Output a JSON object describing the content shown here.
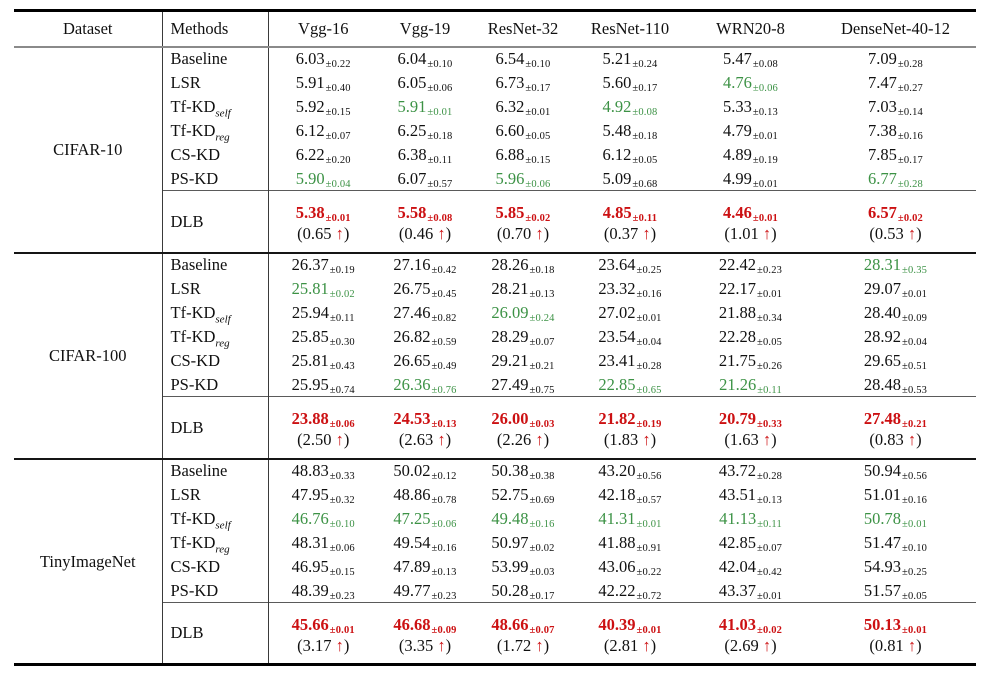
{
  "table": {
    "colors": {
      "green": "#3c9245",
      "red": "#cc1012",
      "text": "#101010"
    },
    "up_arrow": "↑",
    "gain_format": {
      "open": "(",
      "close": ")"
    },
    "header": {
      "dataset": "Dataset",
      "methods": "Methods",
      "architectures": [
        "Vgg-16",
        "Vgg-19",
        "ResNet-32",
        "ResNet-110",
        "WRN20-8",
        "DenseNet-40-12"
      ]
    },
    "sections": [
      {
        "dataset": "CIFAR-10",
        "rows": [
          {
            "method": {
              "base": "Baseline",
              "sub": ""
            },
            "cells": [
              {
                "v": "6.03",
                "pm": "±0.22",
                "hl": false
              },
              {
                "v": "6.04",
                "pm": "±0.10",
                "hl": false
              },
              {
                "v": "6.54",
                "pm": "±0.10",
                "hl": false
              },
              {
                "v": "5.21",
                "pm": "±0.24",
                "hl": false
              },
              {
                "v": "5.47",
                "pm": "±0.08",
                "hl": false
              },
              {
                "v": "7.09",
                "pm": "±0.28",
                "hl": false
              }
            ]
          },
          {
            "method": {
              "base": "LSR",
              "sub": ""
            },
            "cells": [
              {
                "v": "5.91",
                "pm": "±0.40",
                "hl": false
              },
              {
                "v": "6.05",
                "pm": "±0.06",
                "hl": false
              },
              {
                "v": "6.73",
                "pm": "±0.17",
                "hl": false
              },
              {
                "v": "5.60",
                "pm": "±0.17",
                "hl": false
              },
              {
                "v": "4.76",
                "pm": "±0.06",
                "hl": true
              },
              {
                "v": "7.47",
                "pm": "±0.27",
                "hl": false
              }
            ]
          },
          {
            "method": {
              "base": "Tf-KD",
              "sub": "self"
            },
            "cells": [
              {
                "v": "5.92",
                "pm": "±0.15",
                "hl": false
              },
              {
                "v": "5.91",
                "pm": "±0.01",
                "hl": true
              },
              {
                "v": "6.32",
                "pm": "±0.01",
                "hl": false
              },
              {
                "v": "4.92",
                "pm": "±0.08",
                "hl": true
              },
              {
                "v": "5.33",
                "pm": "±0.13",
                "hl": false
              },
              {
                "v": "7.03",
                "pm": "±0.14",
                "hl": false
              }
            ]
          },
          {
            "method": {
              "base": "Tf-KD",
              "sub": "reg"
            },
            "cells": [
              {
                "v": "6.12",
                "pm": "±0.07",
                "hl": false
              },
              {
                "v": "6.25",
                "pm": "±0.18",
                "hl": false
              },
              {
                "v": "6.60",
                "pm": "±0.05",
                "hl": false
              },
              {
                "v": "5.48",
                "pm": "±0.18",
                "hl": false
              },
              {
                "v": "4.79",
                "pm": "±0.01",
                "hl": false
              },
              {
                "v": "7.38",
                "pm": "±0.16",
                "hl": false
              }
            ]
          },
          {
            "method": {
              "base": "CS-KD",
              "sub": ""
            },
            "cells": [
              {
                "v": "6.22",
                "pm": "±0.20",
                "hl": false
              },
              {
                "v": "6.38",
                "pm": "±0.11",
                "hl": false
              },
              {
                "v": "6.88",
                "pm": "±0.15",
                "hl": false
              },
              {
                "v": "6.12",
                "pm": "±0.05",
                "hl": false
              },
              {
                "v": "4.89",
                "pm": "±0.19",
                "hl": false
              },
              {
                "v": "7.85",
                "pm": "±0.17",
                "hl": false
              }
            ]
          },
          {
            "method": {
              "base": "PS-KD",
              "sub": ""
            },
            "cells": [
              {
                "v": "5.90",
                "pm": "±0.04",
                "hl": true
              },
              {
                "v": "6.07",
                "pm": "±0.57",
                "hl": false
              },
              {
                "v": "5.96",
                "pm": "±0.06",
                "hl": true
              },
              {
                "v": "5.09",
                "pm": "±0.68",
                "hl": false
              },
              {
                "v": "4.99",
                "pm": "±0.01",
                "hl": false
              },
              {
                "v": "6.77",
                "pm": "±0.28",
                "hl": true
              }
            ]
          }
        ],
        "dlb": {
          "method": "DLB",
          "cells": [
            {
              "v": "5.38",
              "pm": "±0.01"
            },
            {
              "v": "5.58",
              "pm": "±0.08"
            },
            {
              "v": "5.85",
              "pm": "±0.02"
            },
            {
              "v": "4.85",
              "pm": "±0.11"
            },
            {
              "v": "4.46",
              "pm": "±0.01"
            },
            {
              "v": "6.57",
              "pm": "±0.02"
            }
          ],
          "gains": [
            "0.65",
            "0.46",
            "0.70",
            "0.37",
            "1.01",
            "0.53"
          ]
        }
      },
      {
        "dataset": "CIFAR-100",
        "rows": [
          {
            "method": {
              "base": "Baseline",
              "sub": ""
            },
            "cells": [
              {
                "v": "26.37",
                "pm": "±0.19",
                "hl": false
              },
              {
                "v": "27.16",
                "pm": "±0.42",
                "hl": false
              },
              {
                "v": "28.26",
                "pm": "±0.18",
                "hl": false
              },
              {
                "v": "23.64",
                "pm": "±0.25",
                "hl": false
              },
              {
                "v": "22.42",
                "pm": "±0.23",
                "hl": false
              },
              {
                "v": "28.31",
                "pm": "±0.35",
                "hl": true
              }
            ]
          },
          {
            "method": {
              "base": "LSR",
              "sub": ""
            },
            "cells": [
              {
                "v": "25.81",
                "pm": "±0.02",
                "hl": true
              },
              {
                "v": "26.75",
                "pm": "±0.45",
                "hl": false
              },
              {
                "v": "28.21",
                "pm": "±0.13",
                "hl": false
              },
              {
                "v": "23.32",
                "pm": "±0.16",
                "hl": false
              },
              {
                "v": "22.17",
                "pm": "±0.01",
                "hl": false
              },
              {
                "v": "29.07",
                "pm": "±0.01",
                "hl": false
              }
            ]
          },
          {
            "method": {
              "base": "Tf-KD",
              "sub": "self"
            },
            "cells": [
              {
                "v": "25.94",
                "pm": "±0.11",
                "hl": false
              },
              {
                "v": "27.46",
                "pm": "±0.82",
                "hl": false
              },
              {
                "v": "26.09",
                "pm": "±0.24",
                "hl": true
              },
              {
                "v": "27.02",
                "pm": "±0.01",
                "hl": false
              },
              {
                "v": "21.88",
                "pm": "±0.34",
                "hl": false
              },
              {
                "v": "28.40",
                "pm": "±0.09",
                "hl": false
              }
            ]
          },
          {
            "method": {
              "base": "Tf-KD",
              "sub": "reg"
            },
            "cells": [
              {
                "v": "25.85",
                "pm": "±0.30",
                "hl": false
              },
              {
                "v": "26.82",
                "pm": "±0.59",
                "hl": false
              },
              {
                "v": "28.29",
                "pm": "±0.07",
                "hl": false
              },
              {
                "v": "23.54",
                "pm": "±0.04",
                "hl": false
              },
              {
                "v": "22.28",
                "pm": "±0.05",
                "hl": false
              },
              {
                "v": "28.92",
                "pm": "±0.04",
                "hl": false
              }
            ]
          },
          {
            "method": {
              "base": "CS-KD",
              "sub": ""
            },
            "cells": [
              {
                "v": "25.81",
                "pm": "±0.43",
                "hl": false
              },
              {
                "v": "26.65",
                "pm": "±0.49",
                "hl": false
              },
              {
                "v": "29.21",
                "pm": "±0.21",
                "hl": false
              },
              {
                "v": "23.41",
                "pm": "±0.28",
                "hl": false
              },
              {
                "v": "21.75",
                "pm": "±0.26",
                "hl": false
              },
              {
                "v": "29.65",
                "pm": "±0.51",
                "hl": false
              }
            ]
          },
          {
            "method": {
              "base": "PS-KD",
              "sub": ""
            },
            "cells": [
              {
                "v": "25.95",
                "pm": "±0.74",
                "hl": false
              },
              {
                "v": "26.36",
                "pm": "±0.76",
                "hl": true
              },
              {
                "v": "27.49",
                "pm": "±0.75",
                "hl": false
              },
              {
                "v": "22.85",
                "pm": "±0.65",
                "hl": true
              },
              {
                "v": "21.26",
                "pm": "±0.11",
                "hl": true
              },
              {
                "v": "28.48",
                "pm": "±0.53",
                "hl": false
              }
            ]
          }
        ],
        "dlb": {
          "method": "DLB",
          "cells": [
            {
              "v": "23.88",
              "pm": "±0.06"
            },
            {
              "v": "24.53",
              "pm": "±0.13"
            },
            {
              "v": "26.00",
              "pm": "±0.03"
            },
            {
              "v": "21.82",
              "pm": "±0.19"
            },
            {
              "v": "20.79",
              "pm": "±0.33"
            },
            {
              "v": "27.48",
              "pm": "±0.21"
            }
          ],
          "gains": [
            "2.50",
            "2.63",
            "2.26",
            "1.83",
            "1.63",
            "0.83"
          ]
        }
      },
      {
        "dataset": "TinyImageNet",
        "rows": [
          {
            "method": {
              "base": "Baseline",
              "sub": ""
            },
            "cells": [
              {
                "v": "48.83",
                "pm": "±0.33",
                "hl": false
              },
              {
                "v": "50.02",
                "pm": "±0.12",
                "hl": false
              },
              {
                "v": "50.38",
                "pm": "±0.38",
                "hl": false
              },
              {
                "v": "43.20",
                "pm": "±0.56",
                "hl": false
              },
              {
                "v": "43.72",
                "pm": "±0.28",
                "hl": false
              },
              {
                "v": "50.94",
                "pm": "±0.56",
                "hl": false
              }
            ]
          },
          {
            "method": {
              "base": "LSR",
              "sub": ""
            },
            "cells": [
              {
                "v": "47.95",
                "pm": "±0.32",
                "hl": false
              },
              {
                "v": "48.86",
                "pm": "±0.78",
                "hl": false
              },
              {
                "v": "52.75",
                "pm": "±0.69",
                "hl": false
              },
              {
                "v": "42.18",
                "pm": "±0.57",
                "hl": false
              },
              {
                "v": "43.51",
                "pm": "±0.13",
                "hl": false
              },
              {
                "v": "51.01",
                "pm": "±0.16",
                "hl": false
              }
            ]
          },
          {
            "method": {
              "base": "Tf-KD",
              "sub": "self"
            },
            "cells": [
              {
                "v": "46.76",
                "pm": "±0.10",
                "hl": true
              },
              {
                "v": "47.25",
                "pm": "±0.06",
                "hl": true
              },
              {
                "v": "49.48",
                "pm": "±0.16",
                "hl": true
              },
              {
                "v": "41.31",
                "pm": "±0.01",
                "hl": true
              },
              {
                "v": "41.13",
                "pm": "±0.11",
                "hl": true
              },
              {
                "v": "50.78",
                "pm": "±0.01",
                "hl": true
              }
            ]
          },
          {
            "method": {
              "base": "Tf-KD",
              "sub": "reg"
            },
            "cells": [
              {
                "v": "48.31",
                "pm": "±0.06",
                "hl": false
              },
              {
                "v": "49.54",
                "pm": "±0.16",
                "hl": false
              },
              {
                "v": "50.97",
                "pm": "±0.02",
                "hl": false
              },
              {
                "v": "41.88",
                "pm": "±0.91",
                "hl": false
              },
              {
                "v": "42.85",
                "pm": "±0.07",
                "hl": false
              },
              {
                "v": "51.47",
                "pm": "±0.10",
                "hl": false
              }
            ]
          },
          {
            "method": {
              "base": "CS-KD",
              "sub": ""
            },
            "cells": [
              {
                "v": "46.95",
                "pm": "±0.15",
                "hl": false
              },
              {
                "v": "47.89",
                "pm": "±0.13",
                "hl": false
              },
              {
                "v": "53.99",
                "pm": "±0.03",
                "hl": false
              },
              {
                "v": "43.06",
                "pm": "±0.22",
                "hl": false
              },
              {
                "v": "42.04",
                "pm": "±0.42",
                "hl": false
              },
              {
                "v": "54.93",
                "pm": "±0.25",
                "hl": false
              }
            ]
          },
          {
            "method": {
              "base": "PS-KD",
              "sub": ""
            },
            "cells": [
              {
                "v": "48.39",
                "pm": "±0.23",
                "hl": false
              },
              {
                "v": "49.77",
                "pm": "±0.23",
                "hl": false
              },
              {
                "v": "50.28",
                "pm": "±0.17",
                "hl": false
              },
              {
                "v": "42.22",
                "pm": "±0.72",
                "hl": false
              },
              {
                "v": "43.37",
                "pm": "±0.01",
                "hl": false
              },
              {
                "v": "51.57",
                "pm": "±0.05",
                "hl": false
              }
            ]
          }
        ],
        "dlb": {
          "method": "DLB",
          "cells": [
            {
              "v": "45.66",
              "pm": "±0.01"
            },
            {
              "v": "46.68",
              "pm": "±0.09"
            },
            {
              "v": "48.66",
              "pm": "±0.07"
            },
            {
              "v": "40.39",
              "pm": "±0.01"
            },
            {
              "v": "41.03",
              "pm": "±0.02"
            },
            {
              "v": "50.13",
              "pm": "±0.01"
            }
          ],
          "gains": [
            "3.17",
            "3.35",
            "1.72",
            "2.81",
            "2.69",
            "0.81"
          ]
        }
      }
    ]
  }
}
